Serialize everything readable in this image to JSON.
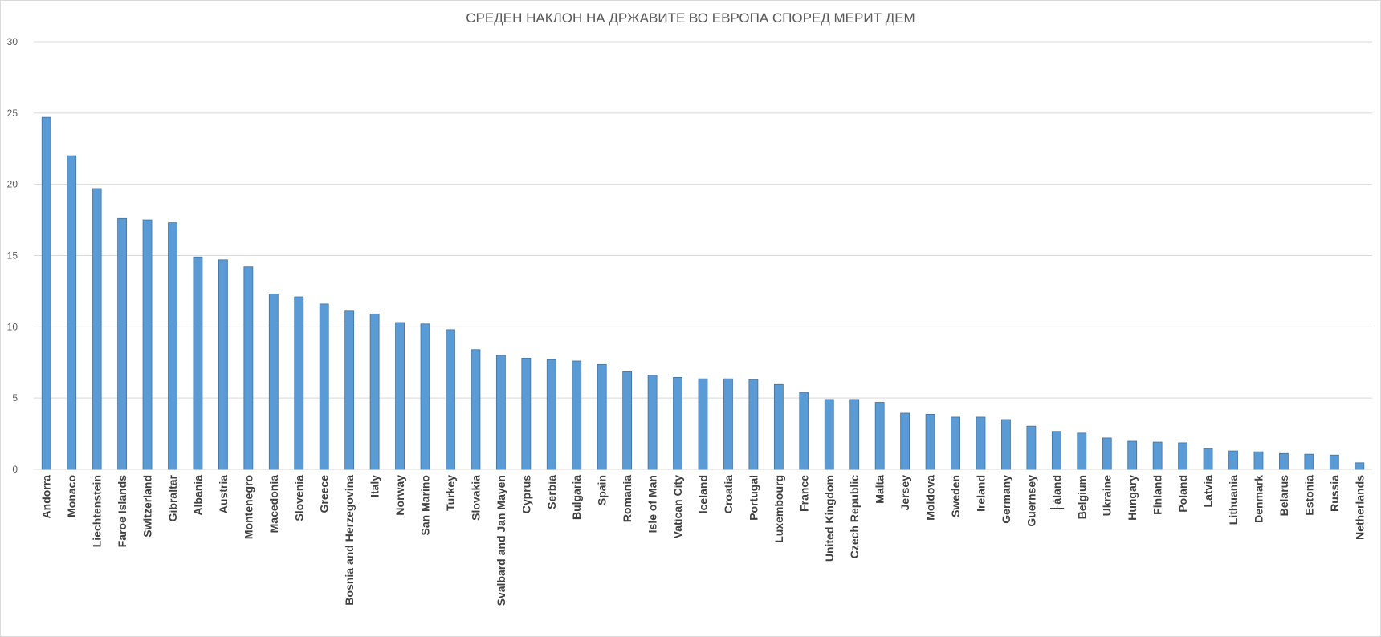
{
  "chart_data": {
    "type": "bar",
    "title": "СРЕДЕН НАКЛОН НА ДРЖАВИТЕ ВО ЕВРОПА СПОРЕД МЕРИТ ДЕМ",
    "xlabel": "",
    "ylabel": "",
    "ylim": [
      0,
      30
    ],
    "yticks": [
      0,
      5,
      10,
      15,
      20,
      25,
      30
    ],
    "grid": true,
    "bar_color": "#5b9bd5",
    "bar_edge_color": "#41719c",
    "categories": [
      "Andorra",
      "Monaco",
      "Liechtenstein",
      "Faroe Islands",
      "Switzerland",
      "Gibraltar",
      "Albania",
      "Austria",
      "Montenegro",
      "Macedonia",
      "Slovenia",
      "Greece",
      "Bosnia and Herzegovina",
      "Italy",
      "Norway",
      "San Marino",
      "Turkey",
      "Slovakia",
      "Svalbard and Jan Mayen",
      "Cyprus",
      "Serbia",
      "Bulgaria",
      "Spain",
      "Romania",
      "Isle of Man",
      "Vatican City",
      "Iceland",
      "Croatia",
      "Portugal",
      "Luxembourg",
      "France",
      "United Kingdom",
      "Czech Republic",
      "Malta",
      "Jersey",
      "Moldova",
      "Sweden",
      "Ireland",
      "Germany",
      "Guernsey",
      "├àland",
      "Belgium",
      "Ukraine",
      "Hungary",
      "Finland",
      "Poland",
      "Latvia",
      "Lithuania",
      "Denmark",
      "Belarus",
      "Estonia",
      "Russia",
      "Netherlands"
    ],
    "values": [
      24.7,
      22.0,
      19.7,
      17.6,
      17.5,
      17.3,
      14.9,
      14.7,
      14.2,
      12.3,
      12.1,
      11.6,
      11.1,
      10.9,
      10.3,
      10.2,
      9.8,
      8.4,
      8.0,
      7.8,
      7.7,
      7.6,
      7.35,
      6.85,
      6.6,
      6.45,
      6.35,
      6.35,
      6.3,
      5.95,
      5.4,
      4.9,
      4.9,
      4.7,
      3.94,
      3.86,
      3.66,
      3.66,
      3.49,
      3.03,
      2.66,
      2.54,
      2.2,
      1.97,
      1.91,
      1.86,
      1.46,
      1.29,
      1.23,
      1.11,
      1.06,
      1.0,
      0.46
    ]
  }
}
